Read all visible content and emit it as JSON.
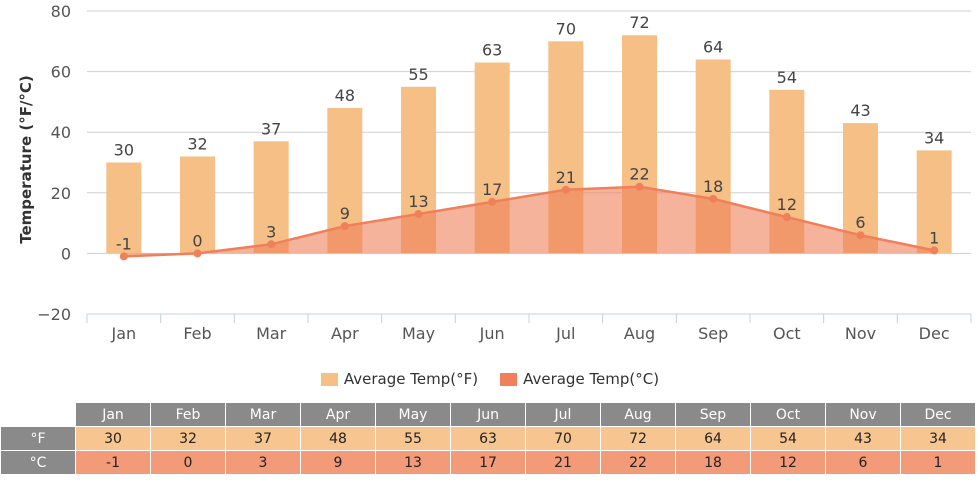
{
  "chart_data": {
    "type": "bar",
    "categories": [
      "Jan",
      "Feb",
      "Mar",
      "Apr",
      "May",
      "Jun",
      "Jul",
      "Aug",
      "Sep",
      "Oct",
      "Nov",
      "Dec"
    ],
    "series": [
      {
        "name": "Average Temp(°F)",
        "type": "bar",
        "color": "#f5bf86",
        "values": [
          30,
          32,
          37,
          48,
          55,
          63,
          70,
          72,
          64,
          54,
          43,
          34
        ]
      },
      {
        "name": "Average Temp(°C)",
        "type": "area",
        "color": "#f0805a",
        "values": [
          -1,
          0,
          3,
          9,
          13,
          17,
          21,
          22,
          18,
          12,
          6,
          1
        ]
      }
    ],
    "xlabel": "",
    "ylabel": "Temperature (°F/°C)",
    "ylim": [
      -20,
      80
    ],
    "yticks": [
      "−20",
      "0",
      "20",
      "40",
      "60",
      "80"
    ],
    "grid": true,
    "legend_position": "bottom"
  },
  "table": {
    "months": [
      "Jan",
      "Feb",
      "Mar",
      "Apr",
      "May",
      "Jun",
      "Jul",
      "Aug",
      "Sep",
      "Oct",
      "Nov",
      "Dec"
    ],
    "rows": [
      {
        "label": "°F",
        "values": [
          "30",
          "32",
          "37",
          "48",
          "55",
          "63",
          "70",
          "72",
          "64",
          "54",
          "43",
          "34"
        ]
      },
      {
        "label": "°C",
        "values": [
          "-1",
          "0",
          "3",
          "9",
          "13",
          "17",
          "21",
          "22",
          "18",
          "12",
          "6",
          "1"
        ]
      }
    ]
  }
}
